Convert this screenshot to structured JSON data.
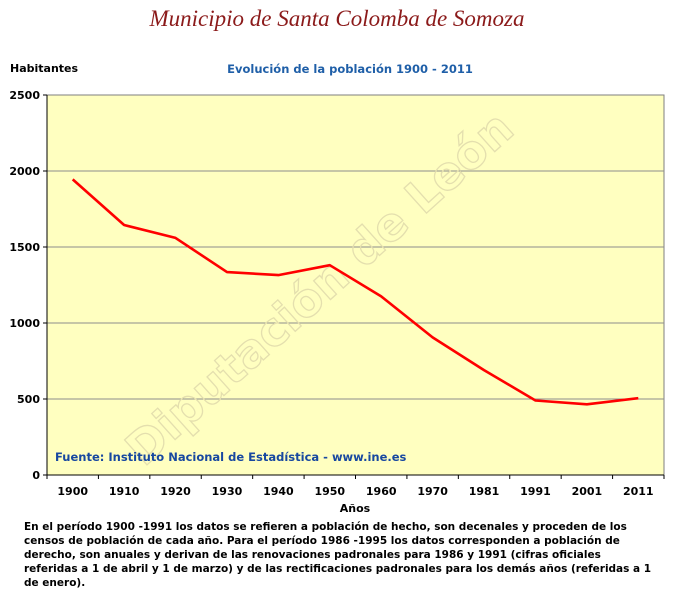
{
  "header": {
    "title": "Municipio de Santa Colomba de Somoza"
  },
  "chart_data": {
    "type": "line",
    "title": "Evolución de la población 1900 - 2011",
    "ylabel": "Habitantes",
    "xlabel": "Años",
    "categories": [
      "1900",
      "1910",
      "1920",
      "1930",
      "1940",
      "1950",
      "1960",
      "1970",
      "1981",
      "1991",
      "2001",
      "2011"
    ],
    "values": [
      1945,
      1645,
      1560,
      1335,
      1315,
      1380,
      1175,
      905,
      690,
      490,
      465,
      505
    ],
    "ylim": [
      0,
      2500
    ],
    "yticks": [
      "0",
      "500",
      "1000",
      "1500",
      "2000",
      "2500"
    ],
    "grid": true,
    "line_color": "#ff0000",
    "plot_background": "#ffffc0",
    "annotation": "Fuente: Instituto Nacional de Estadística - www.ine.es",
    "watermark": "Diputación de León"
  },
  "footnote": "En el período 1900 -1991 los datos se refieren a población de hecho, son decenales y proceden de los censos de población de cada año. Para el período 1986 -1995 los datos corresponden a población de derecho, son anuales y derivan de las renovaciones padronales para 1986 y 1991 (cifras oficiales referidas a 1 de abril y 1 de marzo) y de las rectificaciones padronales para los demás años (referidas a 1 de enero)."
}
